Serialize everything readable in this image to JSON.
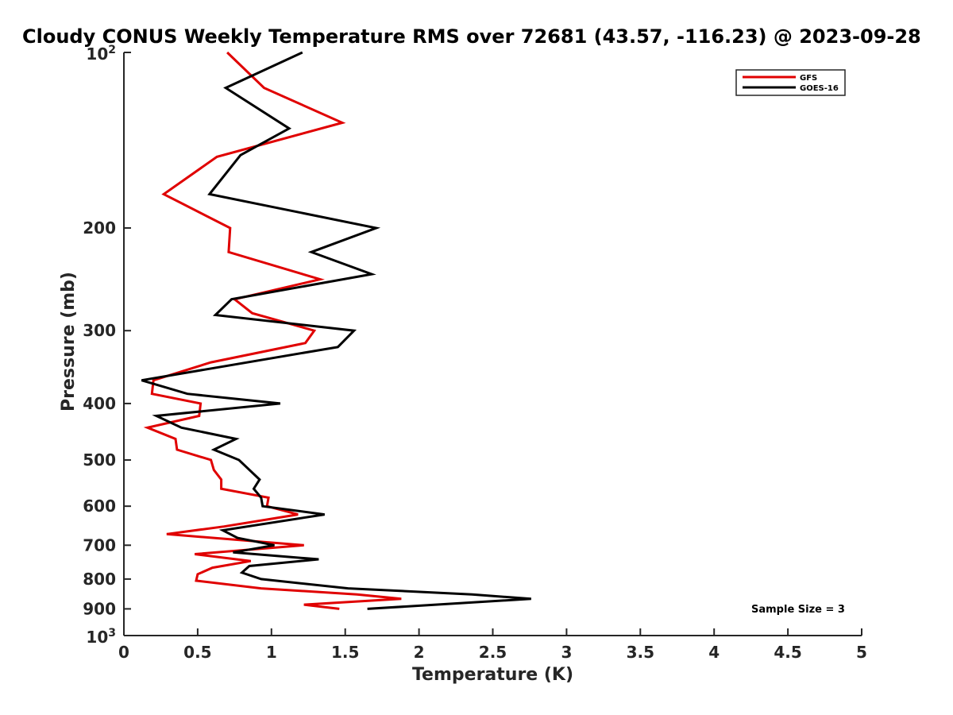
{
  "chart_data": {
    "type": "line",
    "title": "Cloudy CONUS Weekly Temperature RMS over 72681 (43.57, -116.23) @ 2023-09-28",
    "xlabel": "Temperature (K)",
    "ylabel": "Pressure (mb)",
    "xlim": [
      0,
      5
    ],
    "ylim": [
      100,
      1000
    ],
    "y_scale": "log",
    "y_reversed": true,
    "grid": false,
    "x_ticks": [
      {
        "value": 0,
        "label": "0"
      },
      {
        "value": 0.5,
        "label": "0.5"
      },
      {
        "value": 1,
        "label": "1"
      },
      {
        "value": 1.5,
        "label": "1.5"
      },
      {
        "value": 2,
        "label": "2"
      },
      {
        "value": 2.5,
        "label": "2.5"
      },
      {
        "value": 3,
        "label": "3"
      },
      {
        "value": 3.5,
        "label": "3.5"
      },
      {
        "value": 4,
        "label": "4"
      },
      {
        "value": 4.5,
        "label": "4.5"
      },
      {
        "value": 5,
        "label": "5"
      }
    ],
    "y_ticks": [
      {
        "value": 100,
        "base": "10",
        "exp": "2"
      },
      {
        "value": 200,
        "label": "200"
      },
      {
        "value": 300,
        "label": "300"
      },
      {
        "value": 400,
        "label": "400"
      },
      {
        "value": 500,
        "label": "500"
      },
      {
        "value": 600,
        "label": "600"
      },
      {
        "value": 700,
        "label": "700"
      },
      {
        "value": 800,
        "label": "800"
      },
      {
        "value": 900,
        "label": "900"
      },
      {
        "value": 1000,
        "base": "10",
        "exp": "3"
      }
    ],
    "legend": {
      "position": "top-right"
    },
    "annotation": "Sample Size = 3",
    "series": [
      {
        "name": "GFS",
        "color": "#e00000",
        "points": [
          [
            0.7,
            100
          ],
          [
            0.95,
            115
          ],
          [
            1.48,
            132
          ],
          [
            0.63,
            151
          ],
          [
            0.27,
            175
          ],
          [
            0.72,
            200
          ],
          [
            0.71,
            220
          ],
          [
            1.33,
            245
          ],
          [
            0.75,
            265
          ],
          [
            0.87,
            280
          ],
          [
            1.29,
            300
          ],
          [
            1.23,
            315
          ],
          [
            0.59,
            340
          ],
          [
            0.2,
            365
          ],
          [
            0.19,
            385
          ],
          [
            0.52,
            400
          ],
          [
            0.51,
            420
          ],
          [
            0.16,
            440
          ],
          [
            0.35,
            460
          ],
          [
            0.36,
            480
          ],
          [
            0.59,
            500
          ],
          [
            0.61,
            520
          ],
          [
            0.66,
            540
          ],
          [
            0.66,
            560
          ],
          [
            0.98,
            580
          ],
          [
            0.97,
            600
          ],
          [
            1.18,
            620
          ],
          [
            0.68,
            650
          ],
          [
            0.29,
            670
          ],
          [
            1.22,
            700
          ],
          [
            0.48,
            725
          ],
          [
            0.86,
            745
          ],
          [
            0.6,
            765
          ],
          [
            0.5,
            785
          ],
          [
            0.49,
            805
          ],
          [
            0.93,
            830
          ],
          [
            1.58,
            850
          ],
          [
            1.88,
            865
          ],
          [
            1.22,
            885
          ],
          [
            1.46,
            900
          ]
        ]
      },
      {
        "name": "GOES-16",
        "color": "#000000",
        "points": [
          [
            1.21,
            100
          ],
          [
            0.69,
            115
          ],
          [
            1.12,
            135
          ],
          [
            0.79,
            150
          ],
          [
            0.58,
            175
          ],
          [
            1.71,
            200
          ],
          [
            1.27,
            220
          ],
          [
            1.68,
            240
          ],
          [
            0.73,
            265
          ],
          [
            0.62,
            282
          ],
          [
            1.56,
            300
          ],
          [
            1.45,
            320
          ],
          [
            0.12,
            365
          ],
          [
            0.43,
            385
          ],
          [
            1.06,
            400
          ],
          [
            0.22,
            420
          ],
          [
            0.39,
            440
          ],
          [
            0.76,
            460
          ],
          [
            0.61,
            480
          ],
          [
            0.78,
            500
          ],
          [
            0.92,
            540
          ],
          [
            0.88,
            560
          ],
          [
            0.93,
            580
          ],
          [
            0.94,
            600
          ],
          [
            1.36,
            620
          ],
          [
            0.67,
            660
          ],
          [
            0.77,
            680
          ],
          [
            1.02,
            700
          ],
          [
            0.74,
            720
          ],
          [
            1.32,
            740
          ],
          [
            0.85,
            760
          ],
          [
            0.8,
            780
          ],
          [
            0.93,
            800
          ],
          [
            1.52,
            830
          ],
          [
            2.36,
            850
          ],
          [
            2.76,
            865
          ],
          [
            1.65,
            900
          ]
        ]
      }
    ]
  }
}
